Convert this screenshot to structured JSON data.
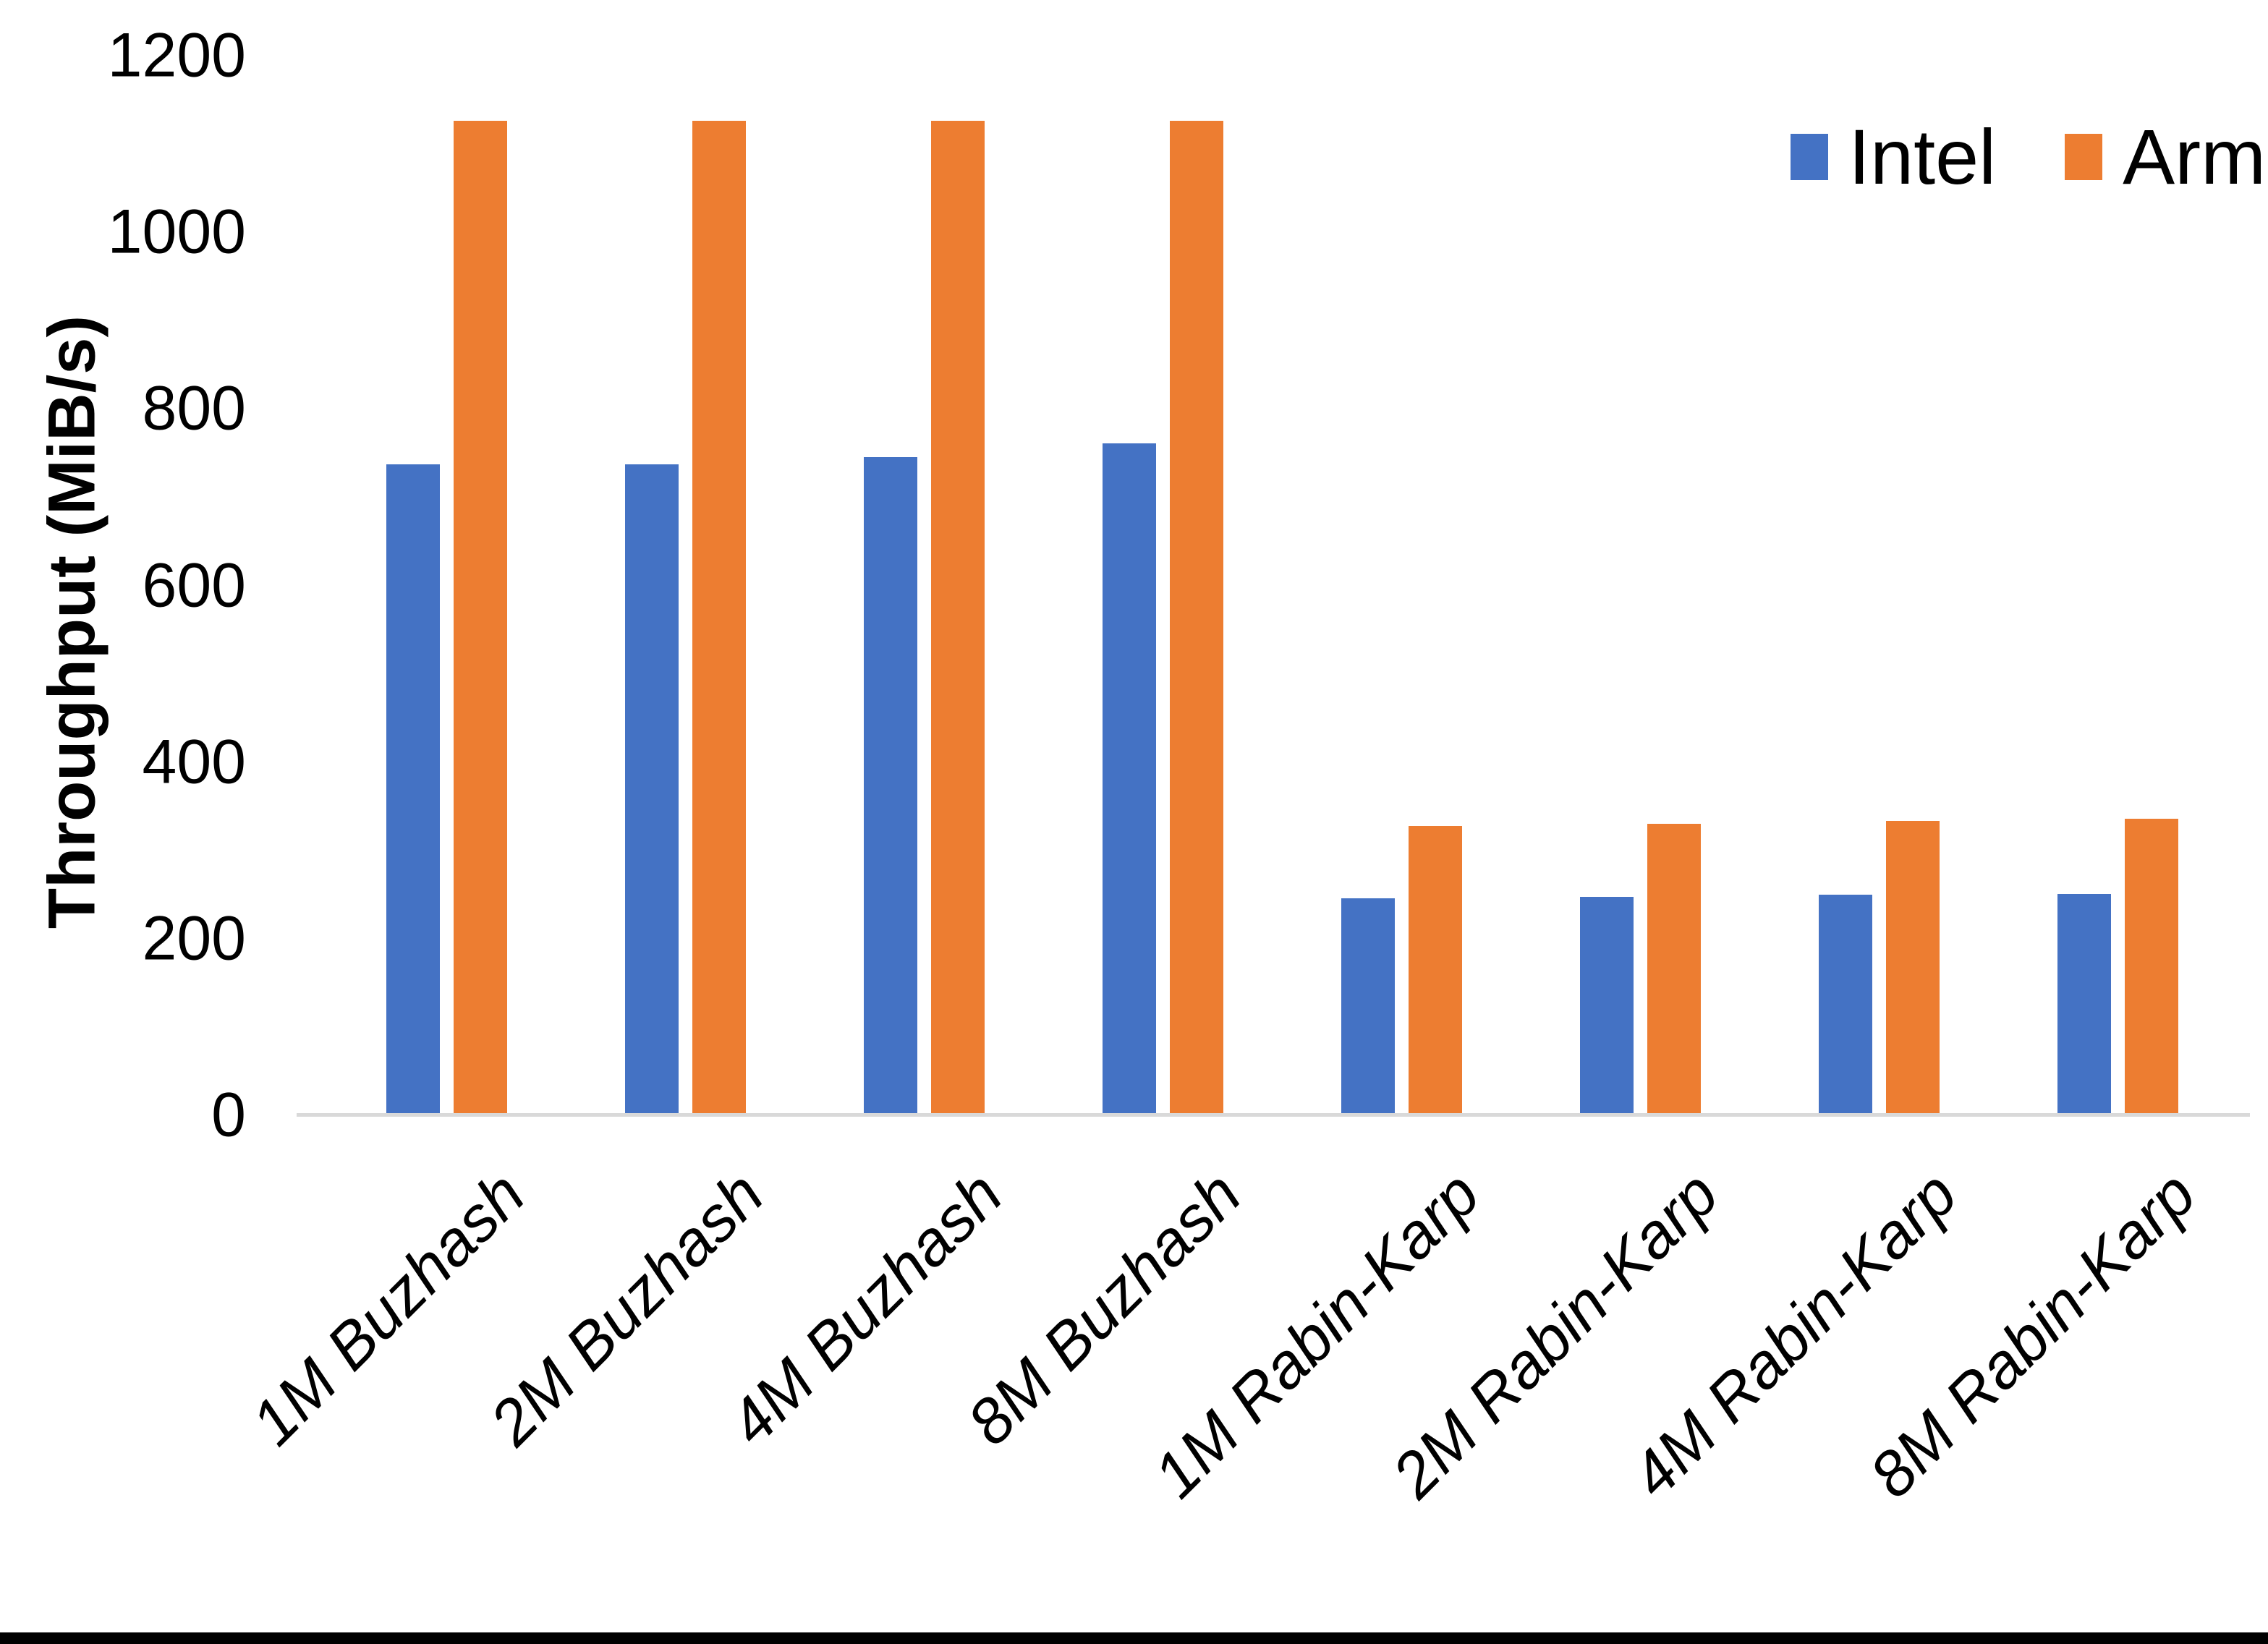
{
  "chart_data": {
    "type": "bar",
    "title": "",
    "xlabel": "",
    "ylabel": "Throughput (MiB/s)",
    "ylim": [
      0,
      1200
    ],
    "yticks": [
      0,
      200,
      400,
      600,
      800,
      1000,
      1200
    ],
    "grid": false,
    "legend_position": "top-right",
    "categories": [
      "1M Buzhash",
      "2M Buzhash",
      "4M Buzhash",
      "8M Buzhash",
      "1M Rabin-Karp",
      "2M Rabin-Karp",
      "4M Rabin-Karp",
      "8M Rabin-Karp"
    ],
    "series": [
      {
        "name": "Intel",
        "color": "#4472C4",
        "values": [
          737,
          737,
          745,
          761,
          246,
          247,
          250,
          251
        ]
      },
      {
        "name": "Arm",
        "color": "#ED7D31",
        "values": [
          1126,
          1126,
          1126,
          1126,
          328,
          330,
          333,
          336
        ]
      }
    ]
  }
}
